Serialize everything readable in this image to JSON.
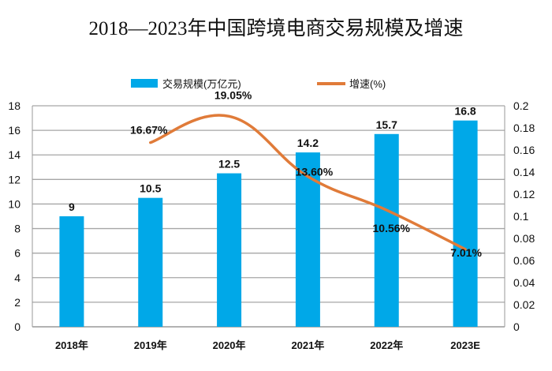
{
  "chart_data": {
    "type": "bar+line",
    "title": "2018—2023年中国跨境电商交易规模及增速",
    "categories": [
      "2018年",
      "2019年",
      "2020年",
      "2021年",
      "2022年",
      "2023E"
    ],
    "series": [
      {
        "name": "交易规模(万亿元)",
        "type": "bar",
        "axis": "left",
        "values": [
          9,
          10.5,
          12.5,
          14.2,
          15.7,
          16.8
        ],
        "labels": [
          "9",
          "10.5",
          "12.5",
          "14.2",
          "15.7",
          "16.8"
        ],
        "color": "#00a8e8"
      },
      {
        "name": "增速(%)",
        "type": "line",
        "axis": "right",
        "values": [
          null,
          0.1667,
          0.1905,
          0.136,
          0.1056,
          0.0701
        ],
        "labels": [
          "",
          "16.67%",
          "19.05%",
          "13.60%",
          "10.56%",
          "7.01%"
        ],
        "color": "#e07b39",
        "smooth": true
      }
    ],
    "left_axis": {
      "ylim": [
        0,
        18
      ],
      "ticks": [
        "0",
        "2",
        "4",
        "6",
        "8",
        "10",
        "12",
        "14",
        "16",
        "18"
      ]
    },
    "right_axis": {
      "ylim": [
        0,
        0.2
      ],
      "ticks": [
        "0",
        "0.02",
        "0.04",
        "0.06",
        "0.08",
        "0.1",
        "0.12",
        "0.14",
        "0.16",
        "0.18",
        "0.2"
      ]
    },
    "grid": true,
    "legend_placement": "top"
  }
}
